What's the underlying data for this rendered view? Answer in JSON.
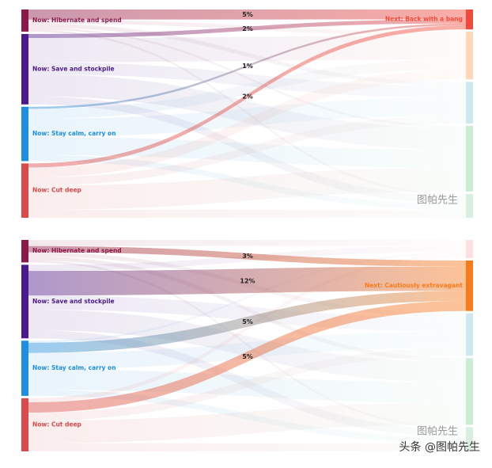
{
  "chart_data": [
    {
      "type": "sankey",
      "sources": [
        {
          "label": "Now: Hibernate and spend",
          "color": "#8b1a4a"
        },
        {
          "label": "Now: Save and stockpile",
          "color": "#4b1a8c"
        },
        {
          "label": "Now: Stay calm, carry on",
          "color": "#1e8fe0"
        },
        {
          "label": "Now: Cut deep",
          "color": "#d94a4a"
        }
      ],
      "targets": [
        {
          "label": "Next: Back with a bang",
          "color": "#f24a3a"
        },
        {
          "label": null,
          "color": "#ffd8b8"
        },
        {
          "label": null,
          "color": "#cde9ee"
        },
        {
          "label": null,
          "color": "#c8ecd4"
        },
        {
          "label": null,
          "color": "#d8efe0"
        }
      ],
      "highlight_target": 0,
      "links": {
        "source": [
          0,
          0,
          0,
          0,
          0,
          1,
          1,
          1,
          1,
          1,
          2,
          2,
          2,
          2,
          2,
          3,
          3,
          3,
          3,
          3
        ],
        "target": [
          0,
          1,
          2,
          3,
          4,
          0,
          1,
          2,
          3,
          4,
          0,
          1,
          2,
          3,
          4,
          0,
          1,
          2,
          3,
          4
        ],
        "values": [
          5,
          2,
          2,
          1,
          1,
          2,
          12,
          6,
          11,
          4,
          1,
          5,
          9,
          9,
          3,
          2,
          5,
          4,
          12,
          4
        ],
        "value_labels": [
          "5%",
          null,
          null,
          null,
          null,
          "2%",
          null,
          null,
          null,
          null,
          "1%",
          null,
          null,
          null,
          null,
          "2%",
          null,
          null,
          null,
          null
        ]
      }
    },
    {
      "type": "sankey",
      "sources": [
        {
          "label": "Now: Hibernate and spend",
          "color": "#8b1a4a"
        },
        {
          "label": "Now: Save and stockpile",
          "color": "#4b1a8c"
        },
        {
          "label": "Now: Stay calm, carry on",
          "color": "#1e8fe0"
        },
        {
          "label": "Now: Cut deep",
          "color": "#d94a4a"
        }
      ],
      "targets": [
        {
          "label": null,
          "color": "#fde0e0"
        },
        {
          "label": "Next: Cautiously extravagant",
          "color": "#f97a1a"
        },
        {
          "label": null,
          "color": "#cde9ee"
        },
        {
          "label": null,
          "color": "#c8ecd4"
        },
        {
          "label": null,
          "color": "#d8efe0"
        }
      ],
      "highlight_target": 1,
      "links": {
        "source": [
          0,
          0,
          0,
          0,
          0,
          1,
          1,
          1,
          1,
          1,
          2,
          2,
          2,
          2,
          2,
          3,
          3,
          3,
          3,
          3
        ],
        "target": [
          0,
          1,
          2,
          3,
          4,
          0,
          1,
          2,
          3,
          4,
          0,
          1,
          2,
          3,
          4,
          0,
          1,
          2,
          3,
          4
        ],
        "values": [
          3,
          3,
          2,
          2,
          1,
          3,
          12,
          7,
          10,
          4,
          1,
          5,
          8,
          10,
          3,
          2,
          5,
          4,
          11,
          4
        ],
        "value_labels": [
          null,
          "3%",
          null,
          null,
          null,
          null,
          "12%",
          null,
          null,
          null,
          null,
          "5%",
          null,
          null,
          null,
          null,
          "5%",
          null,
          null,
          null
        ]
      }
    }
  ],
  "watermarks": [
    "图帕先生",
    "图帕先生",
    "头条 @图帕先生"
  ]
}
